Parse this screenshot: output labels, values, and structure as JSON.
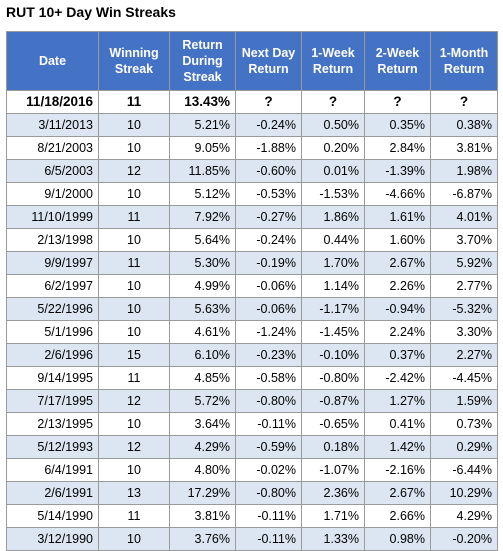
{
  "title": "RUT 10+ Day Win Streaks",
  "colors": {
    "header_bg": "#4472c4",
    "header_text": "#ffffff",
    "band": "#dce6f2",
    "grid": "#9a9a9a"
  },
  "columns": [
    [
      "Date"
    ],
    [
      "Winning",
      "Streak"
    ],
    [
      "Return",
      "During",
      "Streak"
    ],
    [
      "Next Day",
      "Return"
    ],
    [
      "1-Week",
      "Return"
    ],
    [
      "2-Week",
      "Return"
    ],
    [
      "1-Month",
      "Return"
    ]
  ],
  "current": [
    "11/18/2016",
    "11",
    "13.43%",
    "?",
    "?",
    "?",
    "?"
  ],
  "rows": [
    [
      "3/11/2013",
      "10",
      "5.21%",
      "-0.24%",
      "0.50%",
      "0.35%",
      "0.38%"
    ],
    [
      "8/21/2003",
      "10",
      "9.05%",
      "-1.88%",
      "0.20%",
      "2.84%",
      "3.81%"
    ],
    [
      "6/5/2003",
      "12",
      "11.85%",
      "-0.60%",
      "0.01%",
      "-1.39%",
      "1.98%"
    ],
    [
      "9/1/2000",
      "10",
      "5.12%",
      "-0.53%",
      "-1.53%",
      "-4.66%",
      "-6.87%"
    ],
    [
      "11/10/1999",
      "11",
      "7.92%",
      "-0.27%",
      "1.86%",
      "1.61%",
      "4.01%"
    ],
    [
      "2/13/1998",
      "10",
      "5.64%",
      "-0.24%",
      "0.44%",
      "1.60%",
      "3.70%"
    ],
    [
      "9/9/1997",
      "11",
      "5.30%",
      "-0.19%",
      "1.70%",
      "2.67%",
      "5.92%"
    ],
    [
      "6/2/1997",
      "10",
      "4.99%",
      "-0.06%",
      "1.14%",
      "2.26%",
      "2.77%"
    ],
    [
      "5/22/1996",
      "10",
      "5.63%",
      "-0.06%",
      "-1.17%",
      "-0.94%",
      "-5.32%"
    ],
    [
      "5/1/1996",
      "10",
      "4.61%",
      "-1.24%",
      "-1.45%",
      "2.24%",
      "3.30%"
    ],
    [
      "2/6/1996",
      "15",
      "6.10%",
      "-0.23%",
      "-0.10%",
      "0.37%",
      "2.27%"
    ],
    [
      "9/14/1995",
      "11",
      "4.85%",
      "-0.58%",
      "-0.80%",
      "-2.42%",
      "-4.45%"
    ],
    [
      "7/17/1995",
      "12",
      "5.72%",
      "-0.80%",
      "-0.87%",
      "1.27%",
      "1.59%"
    ],
    [
      "2/13/1995",
      "10",
      "3.64%",
      "-0.11%",
      "-0.65%",
      "0.41%",
      "0.73%"
    ],
    [
      "5/12/1993",
      "12",
      "4.29%",
      "-0.59%",
      "0.18%",
      "1.42%",
      "0.29%"
    ],
    [
      "6/4/1991",
      "10",
      "4.80%",
      "-0.02%",
      "-1.07%",
      "-2.16%",
      "-6.44%"
    ],
    [
      "2/6/1991",
      "13",
      "17.29%",
      "-0.80%",
      "2.36%",
      "2.67%",
      "10.29%"
    ],
    [
      "5/14/1990",
      "11",
      "3.81%",
      "-0.11%",
      "1.71%",
      "2.66%",
      "4.29%"
    ],
    [
      "3/12/1990",
      "10",
      "3.76%",
      "-0.11%",
      "1.33%",
      "0.98%",
      "-0.20%"
    ]
  ]
}
